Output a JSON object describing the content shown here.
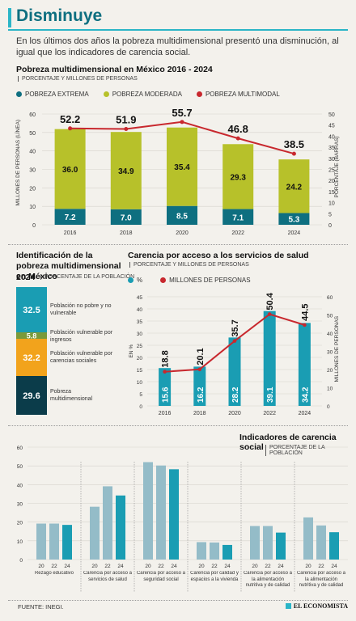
{
  "header": {
    "title": "Disminuye"
  },
  "intro": "En los últimos dos años la pobreza multidimensional presentó una disminución, al igual que los indicadores de carencia social.",
  "footer": {
    "source": "FUENTE: INEGI.",
    "brand": "EL ECONOMISTA"
  },
  "colors": {
    "teal_dark": "#0e6f80",
    "teal": "#1a9db3",
    "olive": "#b7c12a",
    "red": "#c8282e",
    "orange": "#f2a31c",
    "green": "#7a9a3a",
    "navy": "#0b3c4a",
    "gray_blue": "#94bcc8"
  },
  "chart_data": [
    {
      "type": "bar",
      "title": "Pobreza multidimensional en México 2016 - 2024",
      "subtitle": "PORCENTAJE Y MILLONES DE PERSONAS",
      "categories": [
        "2016",
        "2018",
        "2020",
        "2022",
        "2024"
      ],
      "series": [
        {
          "name": "POBREZA EXTREMA",
          "values": [
            7.2,
            7.0,
            8.5,
            7.1,
            5.3
          ],
          "color": "#0e6f80"
        },
        {
          "name": "POBREZA MODERADA",
          "values": [
            36.0,
            34.9,
            35.4,
            29.3,
            24.2
          ],
          "color": "#b7c12a"
        },
        {
          "name": "POBREZA MULTIMODAL",
          "type": "line",
          "values": [
            52.2,
            51.9,
            55.7,
            46.8,
            38.5
          ],
          "color": "#c8282e"
        }
      ],
      "ylabel": "MILLONES DE PERSONAS (LÍNEA)",
      "ylabel_right": "PORCENTAJE (BARRAS)",
      "ylim": [
        0,
        60
      ],
      "ylim_right": [
        0,
        50
      ],
      "yticks": [
        "0",
        "10",
        "20",
        "30",
        "40",
        "50",
        "60"
      ],
      "yticks_right": [
        "0",
        "5",
        "10",
        "15",
        "20",
        "25",
        "30",
        "35",
        "40",
        "45",
        "50"
      ]
    },
    {
      "type": "bar",
      "title": "Identificación de la pobreza multidimensional en México",
      "year": "2024",
      "subtitle": "PORCENTAJE DE LA POBLACIÓN",
      "segments": [
        {
          "value": "32.5",
          "label": "Población no pobre y no vulnerable",
          "color": "#1a9db3"
        },
        {
          "value": "5.8",
          "label": "Población vulnerable por ingresos",
          "color": "#7a9a3a"
        },
        {
          "value": "32.2",
          "label": "Población vulnerable por carencias sociales",
          "color": "#f2a31c"
        },
        {
          "value": "29.6",
          "label": "Pobreza multidimensional",
          "color": "#0b3c4a"
        }
      ]
    },
    {
      "type": "bar",
      "title": "Carencia por acceso a los servicios de salud",
      "subtitle": "PORCENTAJE Y MILLONES DE PERSONAS",
      "categories": [
        "2016",
        "2018",
        "2020",
        "2022",
        "2024"
      ],
      "series": [
        {
          "name": "%",
          "values": [
            15.6,
            16.2,
            28.2,
            39.1,
            34.2
          ],
          "color": "#1a9db3"
        },
        {
          "name": "MILLONES DE PERSONAS",
          "type": "line",
          "values": [
            18.8,
            20.1,
            35.7,
            50.4,
            44.5
          ],
          "color": "#c8282e"
        }
      ],
      "ylabel": "EN %",
      "ylabel_right": "MILLONES DE PERSONAS",
      "ylim": [
        0,
        45
      ],
      "ylim_right": [
        0,
        60
      ],
      "yticks": [
        "0",
        "5",
        "10",
        "15",
        "20",
        "25",
        "30",
        "35",
        "40",
        "45"
      ],
      "yticks_right": [
        "0",
        "10",
        "20",
        "30",
        "40",
        "50",
        "60"
      ]
    },
    {
      "type": "bar",
      "title": "Indicadores de carencia social",
      "subtitle": "PORCENTAJE DE LA POBLACIÓN",
      "groups": [
        {
          "label": "Rezago educativo",
          "values": [
            19.2,
            19.2,
            18.5
          ]
        },
        {
          "label": "Carencia por acceso a servicios de salud",
          "values": [
            28.2,
            39.1,
            34.2
          ]
        },
        {
          "label": "Carencia por acceso a seguridad social",
          "values": [
            52.0,
            50.2,
            48.2
          ]
        },
        {
          "label": "Carencia por calidad y espacios a la vivienda",
          "values": [
            9.3,
            9.1,
            7.8
          ]
        },
        {
          "label": "Carencia por acceso a la alimentación nutritiva y de calidad",
          "values": [
            17.9,
            17.9,
            14.4
          ]
        },
        {
          "label": "Carencia por acceso a la alimentación nutritiva y de calidad",
          "values": [
            22.5,
            18.2,
            14.6
          ]
        }
      ],
      "year_labels": [
        "20",
        "22",
        "24"
      ],
      "ylim": [
        0,
        60
      ],
      "yticks": [
        "0",
        "10",
        "20",
        "30",
        "40",
        "50",
        "60"
      ]
    }
  ]
}
